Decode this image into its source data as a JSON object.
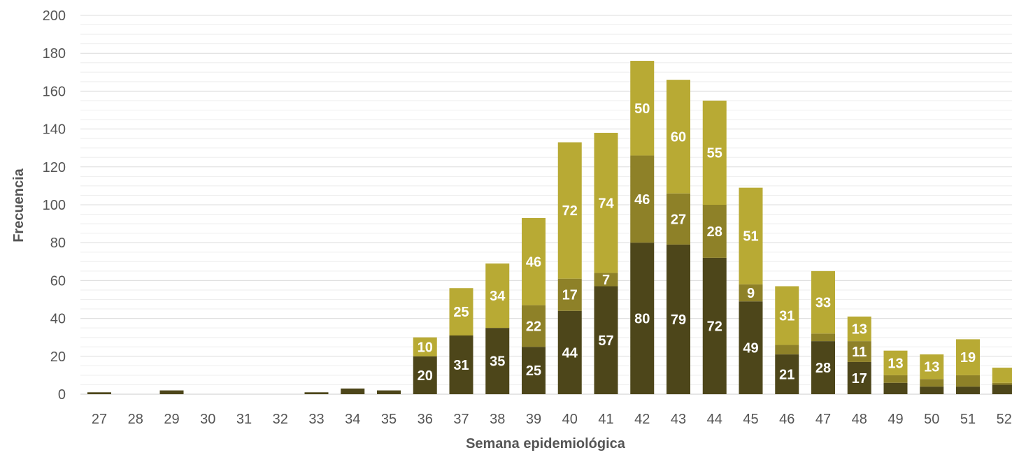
{
  "chart_data": {
    "type": "bar",
    "stacked": true,
    "xlabel": "Semana epidemiológica",
    "ylabel": "Frecuencia",
    "ylim": [
      0,
      200
    ],
    "ytick_step": 20,
    "grid": true,
    "categories": [
      "27",
      "28",
      "29",
      "30",
      "31",
      "32",
      "33",
      "34",
      "35",
      "36",
      "37",
      "38",
      "39",
      "40",
      "41",
      "42",
      "43",
      "44",
      "45",
      "46",
      "47",
      "48",
      "49",
      "50",
      "51",
      "52"
    ],
    "series": [
      {
        "color": "#4d461a",
        "values": [
          1,
          0,
          2,
          0,
          0,
          0,
          1,
          3,
          2,
          20,
          31,
          35,
          25,
          44,
          57,
          80,
          79,
          72,
          49,
          21,
          28,
          17,
          6,
          4,
          4,
          5
        ],
        "labels": [
          "",
          "",
          "",
          "",
          "",
          "",
          "",
          "",
          "",
          "20",
          "31",
          "35",
          "25",
          "44",
          "57",
          "80",
          "79",
          "72",
          "49",
          "21",
          "28",
          "17",
          "",
          "",
          "",
          ""
        ]
      },
      {
        "color": "#8e8128",
        "values": [
          0,
          0,
          0,
          0,
          0,
          0,
          0,
          0,
          0,
          0,
          0,
          0,
          22,
          17,
          7,
          46,
          27,
          28,
          9,
          5,
          4,
          11,
          4,
          4,
          6,
          1
        ],
        "labels": [
          "",
          "",
          "",
          "",
          "",
          "",
          "",
          "",
          "",
          "",
          "",
          "",
          "22",
          "17",
          "7",
          "46",
          "27",
          "28",
          "9",
          "",
          "",
          "11",
          "",
          "",
          "",
          ""
        ]
      },
      {
        "color": "#b8aa34",
        "values": [
          0,
          0,
          0,
          0,
          0,
          0,
          0,
          0,
          0,
          10,
          25,
          34,
          46,
          72,
          74,
          50,
          60,
          55,
          51,
          31,
          33,
          13,
          13,
          13,
          19,
          8
        ],
        "labels": [
          "",
          "",
          "",
          "",
          "",
          "",
          "",
          "",
          "",
          "10",
          "25",
          "34",
          "46",
          "72",
          "74",
          "50",
          "60",
          "55",
          "51",
          "31",
          "33",
          "13",
          "13",
          "13",
          "19",
          ""
        ]
      }
    ]
  }
}
